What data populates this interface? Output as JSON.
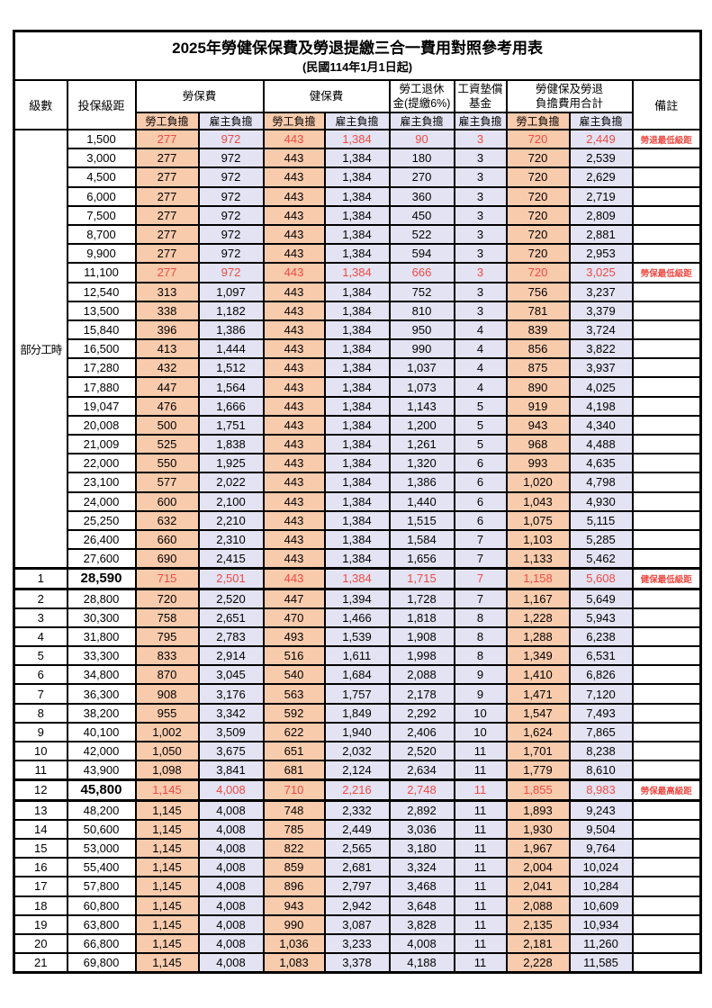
{
  "title": "2025年勞健保保費及勞退提繳三合一費用對照參考用表",
  "subtitle": "(民國114年1月1日起)",
  "colors": {
    "worker_bg": "#F8CBAD",
    "employer_bg": "#E4E3F3",
    "highlight_red": "#F04A42",
    "border": "#000000"
  },
  "header": {
    "level": "級數",
    "bracket": "投保級距",
    "remark": "備註",
    "groups": [
      {
        "line1": "勞保費",
        "line2": ""
      },
      {
        "line1": "健保費",
        "line2": ""
      },
      {
        "line1": "勞工退休",
        "line2": "金(提繳6%)"
      },
      {
        "line1": "工資墊償",
        "line2": "基金"
      },
      {
        "line1": "勞健保及勞退",
        "line2": "負擔費用合計"
      }
    ],
    "sub_labels": [
      "勞工負擔",
      "雇主負擔",
      "勞工負擔",
      "雇主負擔",
      "雇主負擔",
      "雇主負擔",
      "勞工負擔",
      "雇主負擔"
    ],
    "sub_types": [
      "worker",
      "employer",
      "worker",
      "employer",
      "employer",
      "employer",
      "worker",
      "employer"
    ]
  },
  "part_time_label": "部分工時",
  "rows": [
    {
      "level": "部分工時",
      "level_rowspan": 23,
      "bracket": "1,500",
      "values": [
        "277",
        "972",
        "443",
        "1,384",
        "90",
        "3",
        "720",
        "2,449"
      ],
      "note": "勞退最低級距",
      "red": true,
      "emphasis": false
    },
    {
      "level": null,
      "bracket": "3,000",
      "values": [
        "277",
        "972",
        "443",
        "1,384",
        "180",
        "3",
        "720",
        "2,539"
      ],
      "note": "",
      "red": false,
      "emphasis": false
    },
    {
      "level": null,
      "bracket": "4,500",
      "values": [
        "277",
        "972",
        "443",
        "1,384",
        "270",
        "3",
        "720",
        "2,629"
      ],
      "note": "",
      "red": false,
      "emphasis": false
    },
    {
      "level": null,
      "bracket": "6,000",
      "values": [
        "277",
        "972",
        "443",
        "1,384",
        "360",
        "3",
        "720",
        "2,719"
      ],
      "note": "",
      "red": false,
      "emphasis": false
    },
    {
      "level": null,
      "bracket": "7,500",
      "values": [
        "277",
        "972",
        "443",
        "1,384",
        "450",
        "3",
        "720",
        "2,809"
      ],
      "note": "",
      "red": false,
      "emphasis": false
    },
    {
      "level": null,
      "bracket": "8,700",
      "values": [
        "277",
        "972",
        "443",
        "1,384",
        "522",
        "3",
        "720",
        "2,881"
      ],
      "note": "",
      "red": false,
      "emphasis": false
    },
    {
      "level": null,
      "bracket": "9,900",
      "values": [
        "277",
        "972",
        "443",
        "1,384",
        "594",
        "3",
        "720",
        "2,953"
      ],
      "note": "",
      "red": false,
      "emphasis": false
    },
    {
      "level": null,
      "bracket": "11,100",
      "values": [
        "277",
        "972",
        "443",
        "1,384",
        "666",
        "3",
        "720",
        "3,025"
      ],
      "note": "勞保最低級距",
      "red": true,
      "emphasis": false
    },
    {
      "level": null,
      "bracket": "12,540",
      "values": [
        "313",
        "1,097",
        "443",
        "1,384",
        "752",
        "3",
        "756",
        "3,237"
      ],
      "note": "",
      "red": false,
      "emphasis": false
    },
    {
      "level": null,
      "bracket": "13,500",
      "values": [
        "338",
        "1,182",
        "443",
        "1,384",
        "810",
        "3",
        "781",
        "3,379"
      ],
      "note": "",
      "red": false,
      "emphasis": false
    },
    {
      "level": null,
      "bracket": "15,840",
      "values": [
        "396",
        "1,386",
        "443",
        "1,384",
        "950",
        "4",
        "839",
        "3,724"
      ],
      "note": "",
      "red": false,
      "emphasis": false
    },
    {
      "level": null,
      "bracket": "16,500",
      "values": [
        "413",
        "1,444",
        "443",
        "1,384",
        "990",
        "4",
        "856",
        "3,822"
      ],
      "note": "",
      "red": false,
      "emphasis": false
    },
    {
      "level": null,
      "bracket": "17,280",
      "values": [
        "432",
        "1,512",
        "443",
        "1,384",
        "1,037",
        "4",
        "875",
        "3,937"
      ],
      "note": "",
      "red": false,
      "emphasis": false
    },
    {
      "level": null,
      "bracket": "17,880",
      "values": [
        "447",
        "1,564",
        "443",
        "1,384",
        "1,073",
        "4",
        "890",
        "4,025"
      ],
      "note": "",
      "red": false,
      "emphasis": false
    },
    {
      "level": null,
      "bracket": "19,047",
      "values": [
        "476",
        "1,666",
        "443",
        "1,384",
        "1,143",
        "5",
        "919",
        "4,198"
      ],
      "note": "",
      "red": false,
      "emphasis": false
    },
    {
      "level": null,
      "bracket": "20,008",
      "values": [
        "500",
        "1,751",
        "443",
        "1,384",
        "1,200",
        "5",
        "943",
        "4,340"
      ],
      "note": "",
      "red": false,
      "emphasis": false
    },
    {
      "level": null,
      "bracket": "21,009",
      "values": [
        "525",
        "1,838",
        "443",
        "1,384",
        "1,261",
        "5",
        "968",
        "4,488"
      ],
      "note": "",
      "red": false,
      "emphasis": false
    },
    {
      "level": null,
      "bracket": "22,000",
      "values": [
        "550",
        "1,925",
        "443",
        "1,384",
        "1,320",
        "6",
        "993",
        "4,635"
      ],
      "note": "",
      "red": false,
      "emphasis": false
    },
    {
      "level": null,
      "bracket": "23,100",
      "values": [
        "577",
        "2,022",
        "443",
        "1,384",
        "1,386",
        "6",
        "1,020",
        "4,798"
      ],
      "note": "",
      "red": false,
      "emphasis": false
    },
    {
      "level": null,
      "bracket": "24,000",
      "values": [
        "600",
        "2,100",
        "443",
        "1,384",
        "1,440",
        "6",
        "1,043",
        "4,930"
      ],
      "note": "",
      "red": false,
      "emphasis": false
    },
    {
      "level": null,
      "bracket": "25,250",
      "values": [
        "632",
        "2,210",
        "443",
        "1,384",
        "1,515",
        "6",
        "1,075",
        "5,115"
      ],
      "note": "",
      "red": false,
      "emphasis": false
    },
    {
      "level": null,
      "bracket": "26,400",
      "values": [
        "660",
        "2,310",
        "443",
        "1,384",
        "1,584",
        "7",
        "1,103",
        "5,285"
      ],
      "note": "",
      "red": false,
      "emphasis": false
    },
    {
      "level": null,
      "bracket": "27,600",
      "values": [
        "690",
        "2,415",
        "443",
        "1,384",
        "1,656",
        "7",
        "1,133",
        "5,462"
      ],
      "note": "",
      "red": false,
      "emphasis": false
    },
    {
      "level": "1",
      "bracket": "28,590",
      "values": [
        "715",
        "2,501",
        "443",
        "1,384",
        "1,715",
        "7",
        "1,158",
        "5,608"
      ],
      "note": "健保最低級距",
      "red": true,
      "emphasis": true
    },
    {
      "level": "2",
      "bracket": "28,800",
      "values": [
        "720",
        "2,520",
        "447",
        "1,394",
        "1,728",
        "7",
        "1,167",
        "5,649"
      ],
      "note": "",
      "red": false,
      "emphasis": false
    },
    {
      "level": "3",
      "bracket": "30,300",
      "values": [
        "758",
        "2,651",
        "470",
        "1,466",
        "1,818",
        "8",
        "1,228",
        "5,943"
      ],
      "note": "",
      "red": false,
      "emphasis": false
    },
    {
      "level": "4",
      "bracket": "31,800",
      "values": [
        "795",
        "2,783",
        "493",
        "1,539",
        "1,908",
        "8",
        "1,288",
        "6,238"
      ],
      "note": "",
      "red": false,
      "emphasis": false
    },
    {
      "level": "5",
      "bracket": "33,300",
      "values": [
        "833",
        "2,914",
        "516",
        "1,611",
        "1,998",
        "8",
        "1,349",
        "6,531"
      ],
      "note": "",
      "red": false,
      "emphasis": false
    },
    {
      "level": "6",
      "bracket": "34,800",
      "values": [
        "870",
        "3,045",
        "540",
        "1,684",
        "2,088",
        "9",
        "1,410",
        "6,826"
      ],
      "note": "",
      "red": false,
      "emphasis": false
    },
    {
      "level": "7",
      "bracket": "36,300",
      "values": [
        "908",
        "3,176",
        "563",
        "1,757",
        "2,178",
        "9",
        "1,471",
        "7,120"
      ],
      "note": "",
      "red": false,
      "emphasis": false
    },
    {
      "level": "8",
      "bracket": "38,200",
      "values": [
        "955",
        "3,342",
        "592",
        "1,849",
        "2,292",
        "10",
        "1,547",
        "7,493"
      ],
      "note": "",
      "red": false,
      "emphasis": false
    },
    {
      "level": "9",
      "bracket": "40,100",
      "values": [
        "1,002",
        "3,509",
        "622",
        "1,940",
        "2,406",
        "10",
        "1,624",
        "7,865"
      ],
      "note": "",
      "red": false,
      "emphasis": false
    },
    {
      "level": "10",
      "bracket": "42,000",
      "values": [
        "1,050",
        "3,675",
        "651",
        "2,032",
        "2,520",
        "11",
        "1,701",
        "8,238"
      ],
      "note": "",
      "red": false,
      "emphasis": false
    },
    {
      "level": "11",
      "bracket": "43,900",
      "values": [
        "1,098",
        "3,841",
        "681",
        "2,124",
        "2,634",
        "11",
        "1,779",
        "8,610"
      ],
      "note": "",
      "red": false,
      "emphasis": false
    },
    {
      "level": "12",
      "bracket": "45,800",
      "values": [
        "1,145",
        "4,008",
        "710",
        "2,216",
        "2,748",
        "11",
        "1,855",
        "8,983"
      ],
      "note": "勞保最高級距",
      "red": true,
      "emphasis": true
    },
    {
      "level": "13",
      "bracket": "48,200",
      "values": [
        "1,145",
        "4,008",
        "748",
        "2,332",
        "2,892",
        "11",
        "1,893",
        "9,243"
      ],
      "note": "",
      "red": false,
      "emphasis": false
    },
    {
      "level": "14",
      "bracket": "50,600",
      "values": [
        "1,145",
        "4,008",
        "785",
        "2,449",
        "3,036",
        "11",
        "1,930",
        "9,504"
      ],
      "note": "",
      "red": false,
      "emphasis": false
    },
    {
      "level": "15",
      "bracket": "53,000",
      "values": [
        "1,145",
        "4,008",
        "822",
        "2,565",
        "3,180",
        "11",
        "1,967",
        "9,764"
      ],
      "note": "",
      "red": false,
      "emphasis": false
    },
    {
      "level": "16",
      "bracket": "55,400",
      "values": [
        "1,145",
        "4,008",
        "859",
        "2,681",
        "3,324",
        "11",
        "2,004",
        "10,024"
      ],
      "note": "",
      "red": false,
      "emphasis": false
    },
    {
      "level": "17",
      "bracket": "57,800",
      "values": [
        "1,145",
        "4,008",
        "896",
        "2,797",
        "3,468",
        "11",
        "2,041",
        "10,284"
      ],
      "note": "",
      "red": false,
      "emphasis": false
    },
    {
      "level": "18",
      "bracket": "60,800",
      "values": [
        "1,145",
        "4,008",
        "943",
        "2,942",
        "3,648",
        "11",
        "2,088",
        "10,609"
      ],
      "note": "",
      "red": false,
      "emphasis": false
    },
    {
      "level": "19",
      "bracket": "63,800",
      "values": [
        "1,145",
        "4,008",
        "990",
        "3,087",
        "3,828",
        "11",
        "2,135",
        "10,934"
      ],
      "note": "",
      "red": false,
      "emphasis": false
    },
    {
      "level": "20",
      "bracket": "66,800",
      "values": [
        "1,145",
        "4,008",
        "1,036",
        "3,233",
        "4,008",
        "11",
        "2,181",
        "11,260"
      ],
      "note": "",
      "red": false,
      "emphasis": false
    },
    {
      "level": "21",
      "bracket": "69,800",
      "values": [
        "1,145",
        "4,008",
        "1,083",
        "3,378",
        "4,188",
        "11",
        "2,228",
        "11,585"
      ],
      "note": "",
      "red": false,
      "emphasis": false
    }
  ]
}
